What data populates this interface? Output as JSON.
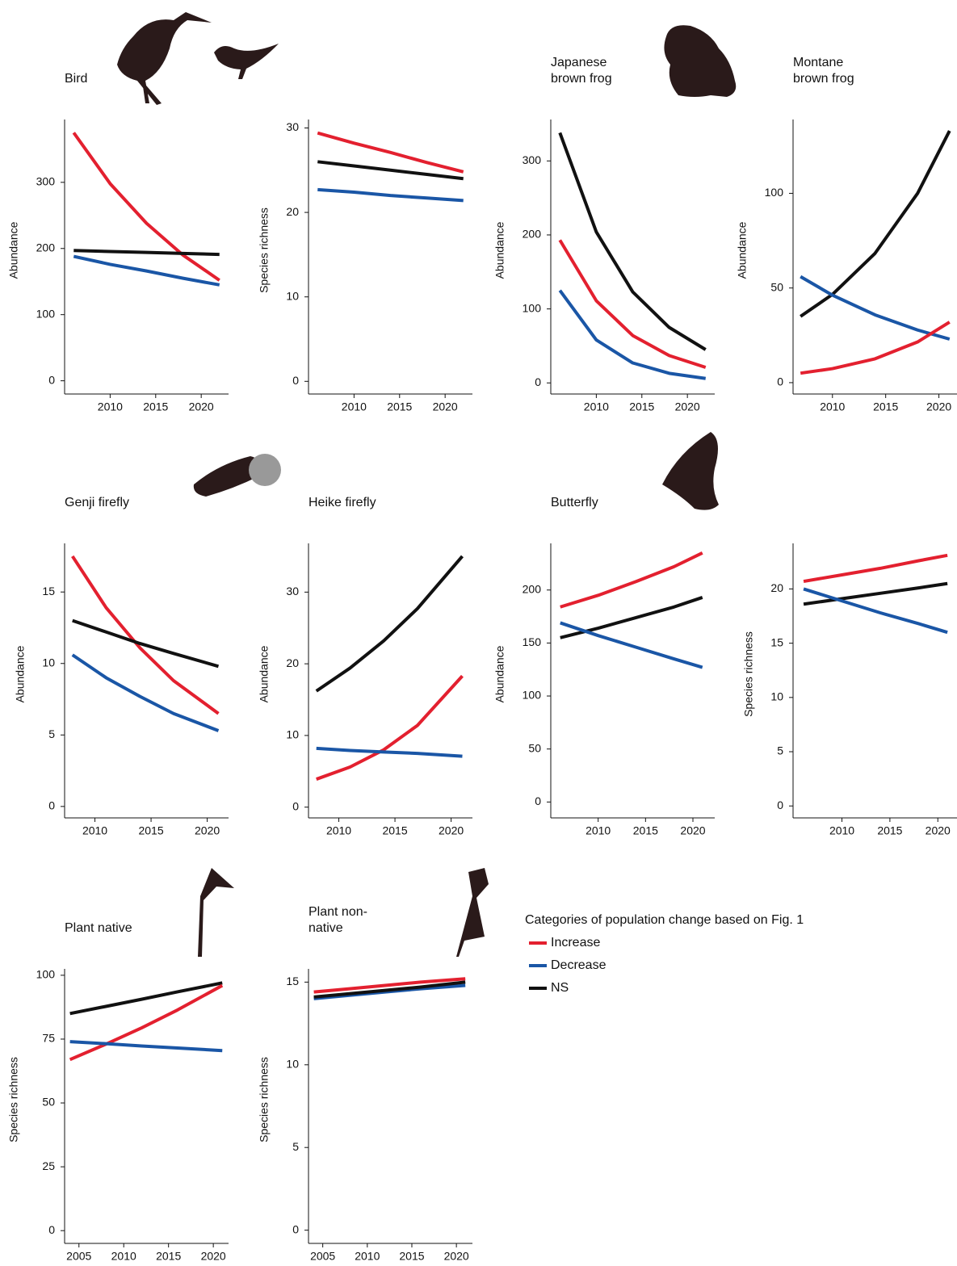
{
  "chart_data": [
    {
      "type": "line",
      "title": "Bird",
      "y_label": "Abundance",
      "x": [
        2006,
        2010,
        2014,
        2018,
        2022
      ],
      "xlim": [
        2005,
        2023
      ],
      "xticks": [
        2010,
        2015,
        2020
      ],
      "ylim": [
        -20,
        395
      ],
      "yticks": [
        0,
        100,
        200,
        300
      ],
      "series": [
        {
          "color": "#e3202f",
          "values": [
            375,
            298,
            238,
            190,
            152
          ]
        },
        {
          "color": "#111111",
          "values": [
            197,
            195.5,
            194,
            192.5,
            191
          ]
        },
        {
          "color": "#1a56a6",
          "values": [
            188,
            176,
            166,
            155,
            145
          ]
        }
      ]
    },
    {
      "type": "line",
      "y_label": "Species richness",
      "x": [
        2006,
        2010,
        2014,
        2018,
        2022
      ],
      "xlim": [
        2005,
        2023
      ],
      "xticks": [
        2010,
        2015,
        2020
      ],
      "ylim": [
        -1.5,
        31
      ],
      "yticks": [
        0,
        10,
        20,
        30
      ],
      "series": [
        {
          "color": "#e3202f",
          "values": [
            29.4,
            28.2,
            27.1,
            25.9,
            24.8
          ]
        },
        {
          "color": "#111111",
          "values": [
            26.0,
            25.5,
            25.0,
            24.5,
            24.0
          ]
        },
        {
          "color": "#1a56a6",
          "values": [
            22.7,
            22.4,
            22.0,
            21.7,
            21.4
          ]
        }
      ]
    },
    {
      "type": "line",
      "title": "Japanese brown frog",
      "y_label": "Abundance",
      "x": [
        2006,
        2010,
        2014,
        2018,
        2022
      ],
      "xlim": [
        2005,
        2023
      ],
      "xticks": [
        2010,
        2015,
        2020
      ],
      "ylim": [
        -15,
        356
      ],
      "yticks": [
        0,
        100,
        200,
        300
      ],
      "series": [
        {
          "color": "#111111",
          "values": [
            338,
            204,
            123,
            75,
            45
          ]
        },
        {
          "color": "#e3202f",
          "values": [
            193,
            111,
            64,
            37,
            21
          ]
        },
        {
          "color": "#1a56a6",
          "values": [
            125,
            58,
            27,
            13,
            6
          ]
        }
      ]
    },
    {
      "type": "line",
      "title": "Montane brown frog",
      "y_label": "Abundance",
      "x": [
        2007,
        2010,
        2014,
        2018,
        2021
      ],
      "xlim": [
        2006.3,
        2021.7
      ],
      "xticks": [
        2010,
        2015,
        2020
      ],
      "ylim": [
        -6,
        139
      ],
      "yticks": [
        0,
        50,
        100
      ],
      "series": [
        {
          "color": "#111111",
          "values": [
            35,
            46.6,
            68.3,
            100,
            133
          ]
        },
        {
          "color": "#1a56a6",
          "values": [
            56,
            46.2,
            35.8,
            27.8,
            23
          ]
        },
        {
          "color": "#e3202f",
          "values": [
            5,
            7.4,
            12.6,
            21.5,
            32
          ]
        }
      ]
    },
    {
      "type": "line",
      "title": "Genji firefly",
      "y_label": "Abundance",
      "x": [
        2008,
        2011,
        2014,
        2017,
        2021
      ],
      "xlim": [
        2007.3,
        2021.9
      ],
      "xticks": [
        2010,
        2015,
        2020
      ],
      "ylim": [
        -0.8,
        18.4
      ],
      "yticks": [
        0,
        5,
        10,
        15
      ],
      "series": [
        {
          "color": "#e3202f",
          "values": [
            17.5,
            13.9,
            11.1,
            8.8,
            6.5
          ]
        },
        {
          "color": "#111111",
          "values": [
            13.0,
            12.2,
            11.4,
            10.7,
            9.8
          ]
        },
        {
          "color": "#1a56a6",
          "values": [
            10.6,
            9.0,
            7.7,
            6.5,
            5.3
          ]
        }
      ]
    },
    {
      "type": "line",
      "title": "Heike firefly",
      "y_label": "Abundance",
      "x": [
        2008,
        2011,
        2014,
        2017,
        2021
      ],
      "xlim": [
        2007.3,
        2021.9
      ],
      "xticks": [
        2010,
        2015,
        2020
      ],
      "ylim": [
        -1.5,
        36.8
      ],
      "yticks": [
        0,
        10,
        20,
        30
      ],
      "series": [
        {
          "color": "#111111",
          "values": [
            16.2,
            19.4,
            23.2,
            27.7,
            35
          ]
        },
        {
          "color": "#e3202f",
          "values": [
            3.9,
            5.6,
            8.0,
            11.4,
            18.3
          ]
        },
        {
          "color": "#1a56a6",
          "values": [
            8.2,
            7.9,
            7.7,
            7.5,
            7.1
          ]
        }
      ]
    },
    {
      "type": "line",
      "title": "Butterfly",
      "y_label": "Abundance",
      "x": [
        2006,
        2010,
        2014,
        2018,
        2021
      ],
      "xlim": [
        2005,
        2022.3
      ],
      "xticks": [
        2010,
        2015,
        2020
      ],
      "ylim": [
        -15,
        244
      ],
      "yticks": [
        0,
        50,
        100,
        150,
        200
      ],
      "series": [
        {
          "color": "#e3202f",
          "values": [
            184,
            195,
            208,
            222,
            235
          ]
        },
        {
          "color": "#111111",
          "values": [
            155,
            164,
            174,
            184,
            193
          ]
        },
        {
          "color": "#1a56a6",
          "values": [
            169,
            157,
            146,
            135,
            127
          ]
        }
      ]
    },
    {
      "type": "line",
      "y_label": "Species richness",
      "x": [
        2006,
        2010,
        2014,
        2018,
        2021
      ],
      "xlim": [
        2004.9,
        2022
      ],
      "xticks": [
        2010,
        2015,
        2020
      ],
      "ylim": [
        -1.1,
        24.2
      ],
      "yticks": [
        0,
        5,
        10,
        15,
        20
      ],
      "series": [
        {
          "color": "#e3202f",
          "values": [
            20.7,
            21.3,
            21.9,
            22.6,
            23.1
          ]
        },
        {
          "color": "#111111",
          "values": [
            18.6,
            19.1,
            19.6,
            20.1,
            20.5
          ]
        },
        {
          "color": "#1a56a6",
          "values": [
            20.0,
            18.9,
            17.8,
            16.8,
            16.0
          ]
        }
      ]
    },
    {
      "type": "line",
      "title": "Plant native",
      "y_label": "Species richness",
      "x": [
        2004,
        2008,
        2012,
        2016,
        2021
      ],
      "xlim": [
        2003.4,
        2021.7
      ],
      "xticks": [
        2005,
        2010,
        2015,
        2020
      ],
      "ylim": [
        -5,
        102.5
      ],
      "yticks": [
        0,
        25,
        50,
        75,
        100
      ],
      "series": [
        {
          "color": "#111111",
          "values": [
            85,
            87.8,
            90.6,
            93.5,
            97
          ]
        },
        {
          "color": "#e3202f",
          "values": [
            67,
            73,
            79.4,
            86.4,
            96
          ]
        },
        {
          "color": "#1a56a6",
          "values": [
            74,
            73.2,
            72.3,
            71.5,
            70.5
          ]
        }
      ]
    },
    {
      "type": "line",
      "title": "Plant non-native",
      "y_label": "Species richness",
      "x": [
        2004,
        2008,
        2012,
        2016,
        2021
      ],
      "xlim": [
        2003.4,
        2021.8
      ],
      "xticks": [
        2005,
        2010,
        2015,
        2020
      ],
      "ylim": [
        -0.8,
        15.8
      ],
      "yticks": [
        0,
        5,
        10,
        15
      ],
      "series": [
        {
          "color": "#e3202f",
          "values": [
            14.4,
            14.6,
            14.8,
            15.0,
            15.2
          ]
        },
        {
          "color": "#1a56a6",
          "values": [
            14.0,
            14.2,
            14.4,
            14.6,
            14.8
          ]
        },
        {
          "color": "#111111",
          "values": [
            14.1,
            14.3,
            14.5,
            14.7,
            15.0
          ]
        }
      ]
    }
  ],
  "legend": {
    "title": "Categories of population change based on Fig. 1",
    "items": [
      {
        "name": "Increase",
        "color": "#e3202f"
      },
      {
        "name": "Decrease",
        "color": "#1a56a6"
      },
      {
        "name": "NS",
        "color": "#111111"
      }
    ]
  }
}
